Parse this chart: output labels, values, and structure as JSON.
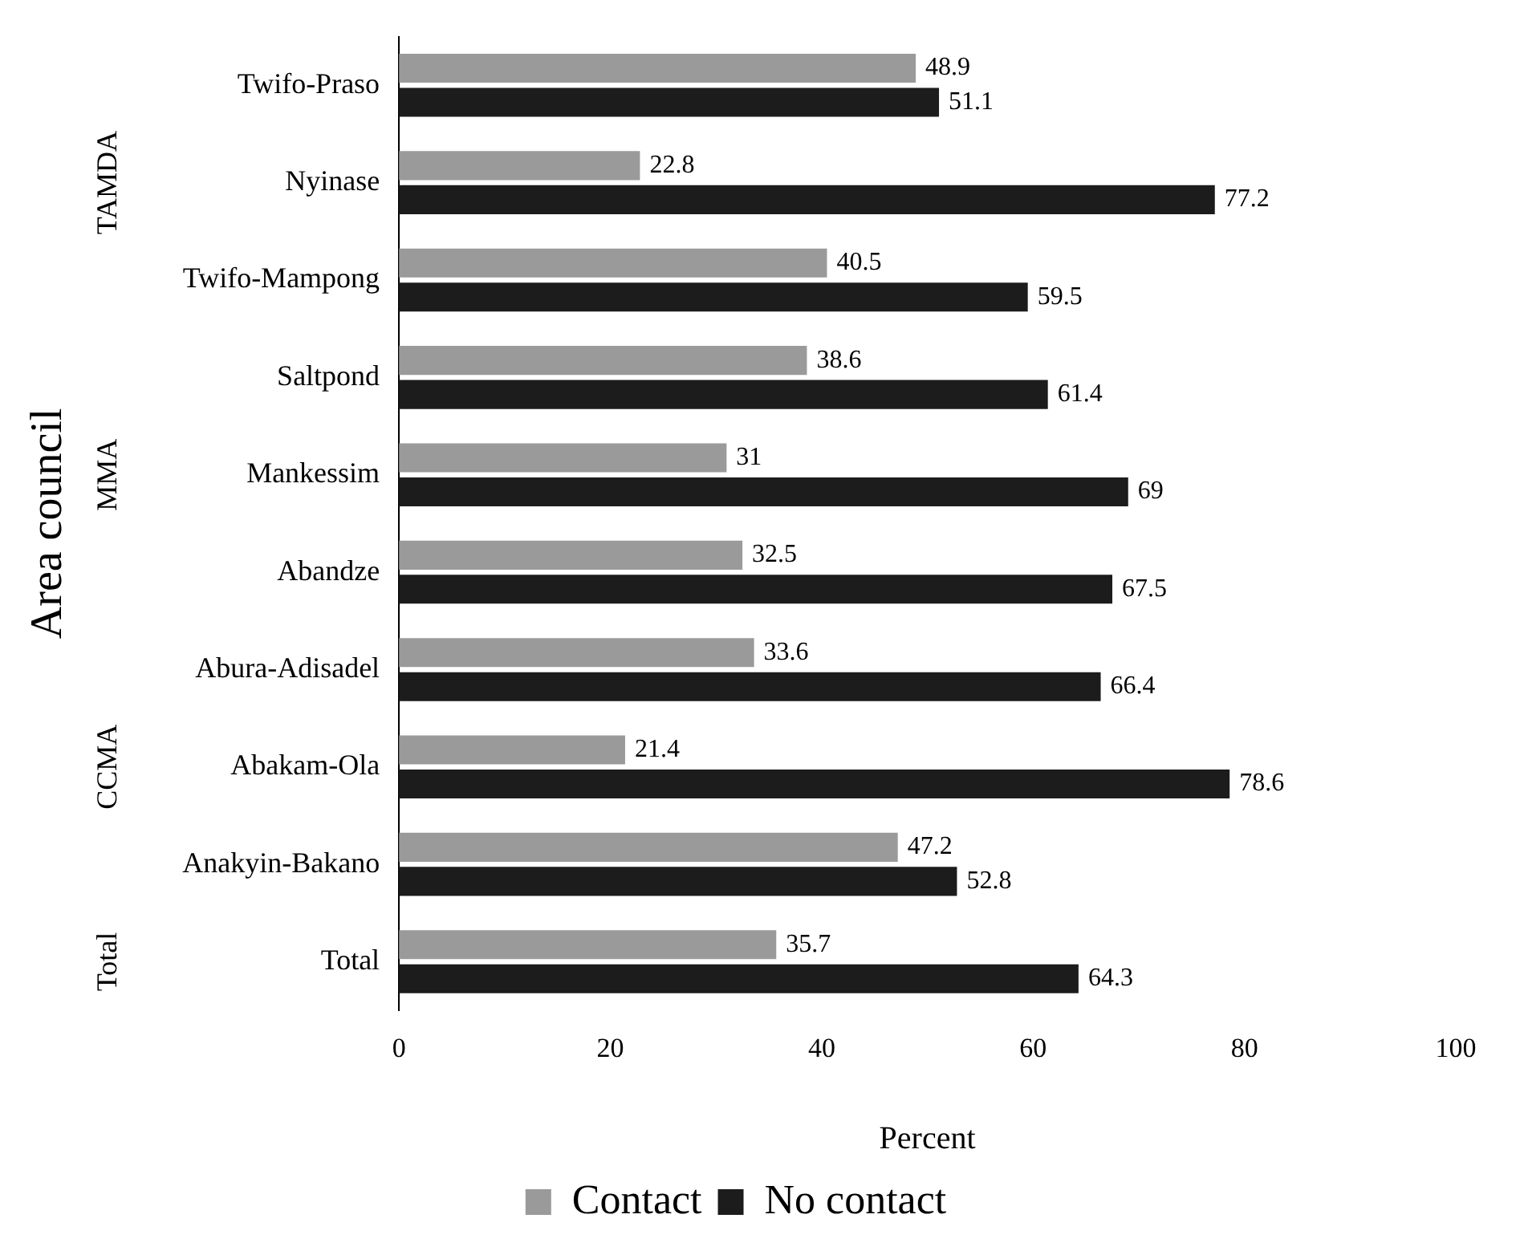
{
  "chart_data": {
    "type": "bar",
    "orientation": "horizontal",
    "xlabel": "Percent",
    "ylabel": "Area council",
    "categories": [
      "Twifo-Praso",
      "Nyinase",
      "Twifo-Mampong",
      "Saltpond",
      "Mankessim",
      "Abandze",
      "Abura-Adisadel",
      "Abakam-Ola",
      "Anakyin-Bakano",
      "Total"
    ],
    "series": [
      {
        "name": "Contact",
        "color": "#9a9a9a",
        "values": [
          48.9,
          22.8,
          40.5,
          38.6,
          31,
          32.5,
          33.6,
          21.4,
          47.2,
          35.7
        ]
      },
      {
        "name": "No contact",
        "color": "#1c1c1c",
        "values": [
          51.1,
          77.2,
          59.5,
          61.4,
          69,
          67.5,
          66.4,
          78.6,
          52.8,
          64.3
        ]
      }
    ],
    "xlim": [
      0,
      100
    ],
    "xticks": [
      0,
      20,
      40,
      60,
      80,
      100
    ],
    "grid": false,
    "legend": "bottom",
    "data_labels": true,
    "annotations": [
      "TAMDA",
      "MMA",
      "CCMA",
      "Total"
    ]
  }
}
